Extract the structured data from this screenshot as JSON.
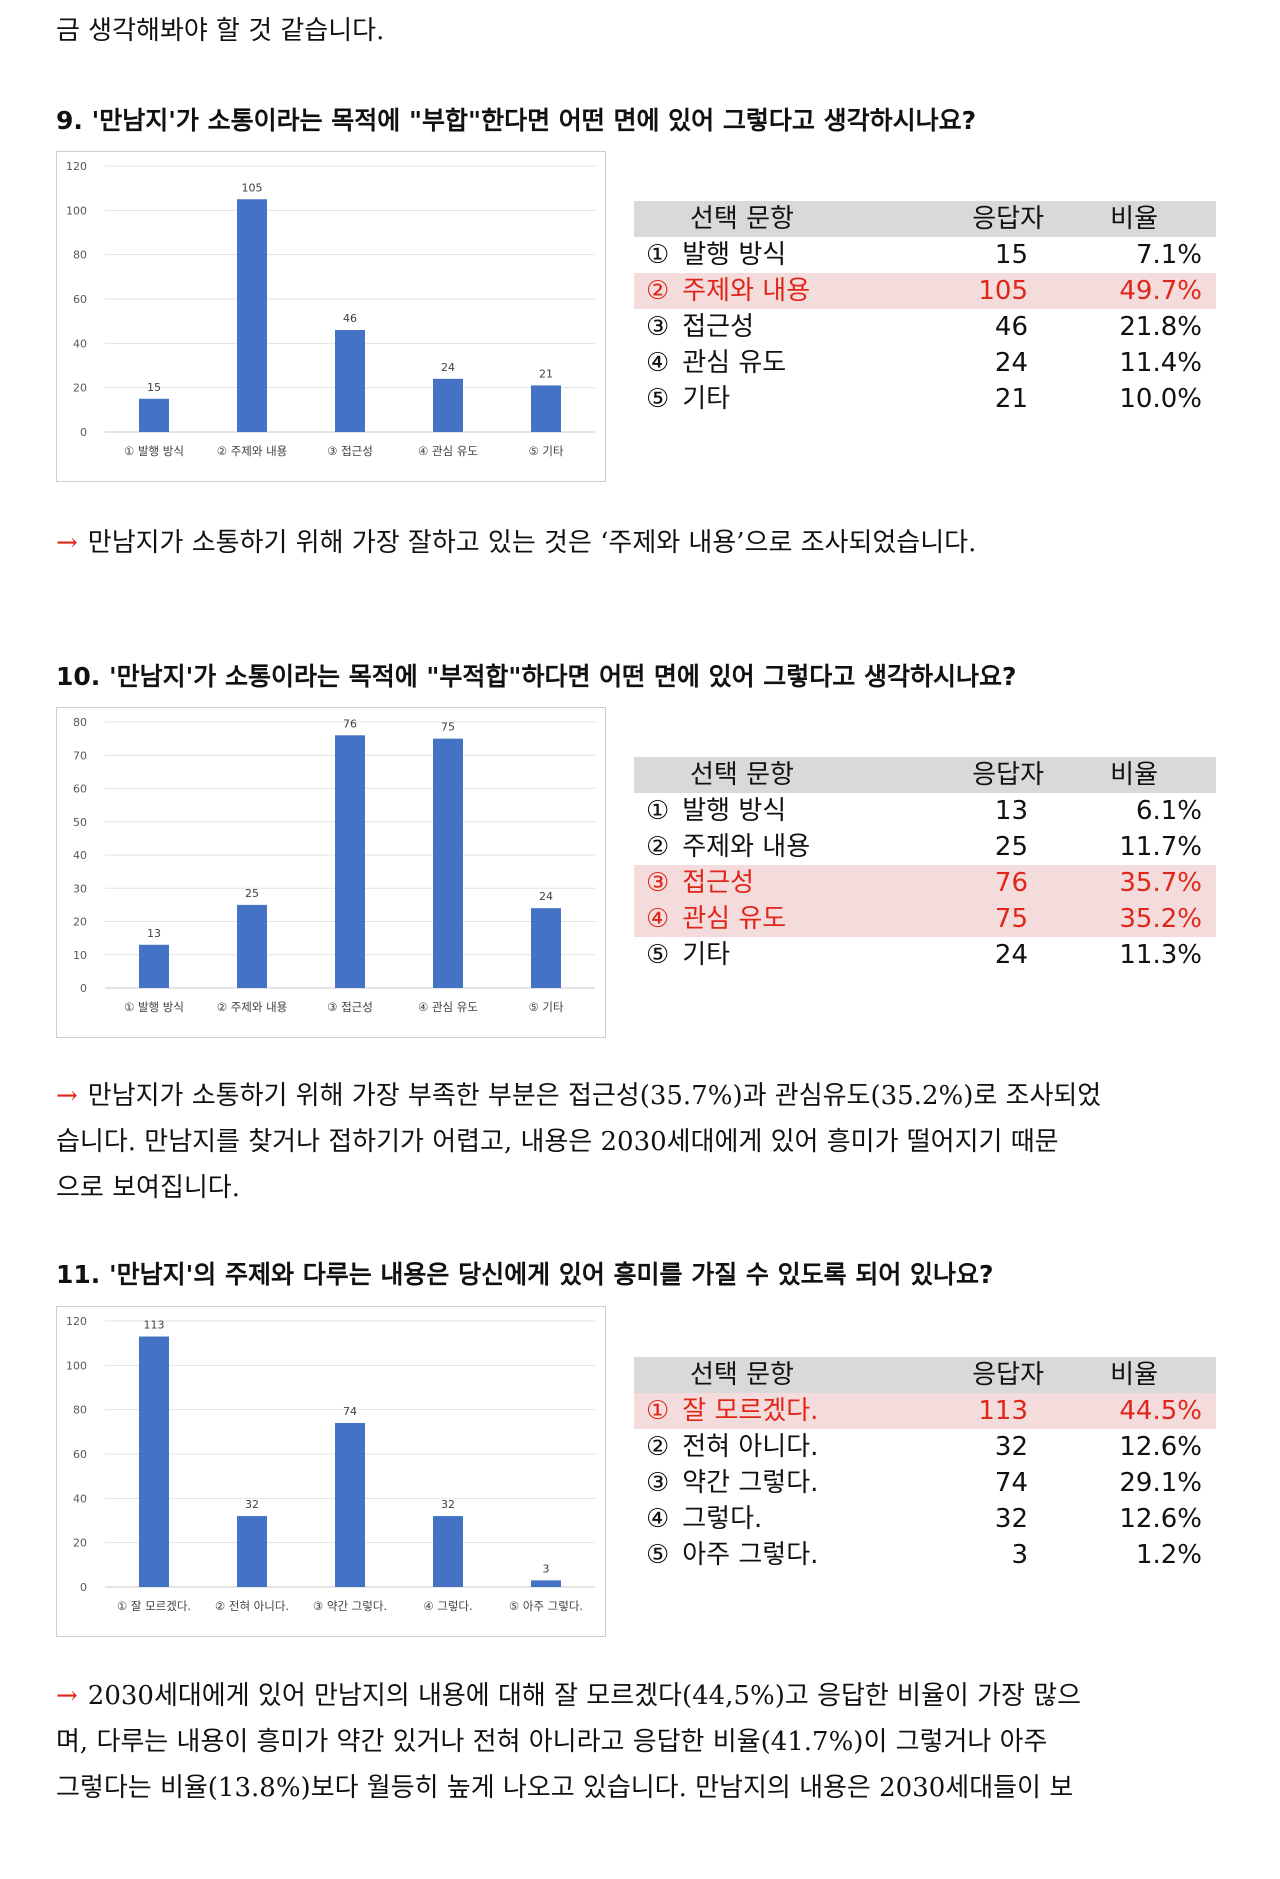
{
  "intro_text": "금 생각해봐야 할 것 같습니다.",
  "sections": [
    {
      "title": "9. '만남지'가 소통이라는 목적에 \"부합\"한다면 어떤 면에 있어 그렇다고 생각하시나요?",
      "table": {
        "headers": [
          "선택 문항",
          "응답자",
          "비율"
        ],
        "rows": [
          {
            "num": "①",
            "label": "발행 방식",
            "count": "15",
            "pct": "7.1%",
            "highlight": false
          },
          {
            "num": "②",
            "label": "주제와 내용",
            "count": "105",
            "pct": "49.7%",
            "highlight": true
          },
          {
            "num": "③",
            "label": "접근성",
            "count": "46",
            "pct": "21.8%",
            "highlight": false
          },
          {
            "num": "④",
            "label": "관심 유도",
            "count": "24",
            "pct": "11.4%",
            "highlight": false
          },
          {
            "num": "⑤",
            "label": "기타",
            "count": "21",
            "pct": "10.0%",
            "highlight": false
          }
        ]
      },
      "conclusion": {
        "arrow": "→",
        "lines": [
          "만남지가 소통하기 위해 가장 잘하고 있는 것은 ‘주제와 내용’으로 조사되었습니다."
        ]
      }
    },
    {
      "title": "10. '만남지'가 소통이라는 목적에 \"부적합\"하다면 어떤 면에 있어 그렇다고 생각하시나요?",
      "table": {
        "headers": [
          "선택 문항",
          "응답자",
          "비율"
        ],
        "rows": [
          {
            "num": "①",
            "label": "발행 방식",
            "count": "13",
            "pct": "6.1%",
            "highlight": false
          },
          {
            "num": "②",
            "label": "주제와 내용",
            "count": "25",
            "pct": "11.7%",
            "highlight": false
          },
          {
            "num": "③",
            "label": "접근성",
            "count": "76",
            "pct": "35.7%",
            "highlight": true
          },
          {
            "num": "④",
            "label": "관심 유도",
            "count": "75",
            "pct": "35.2%",
            "highlight": true
          },
          {
            "num": "⑤",
            "label": "기타",
            "count": "24",
            "pct": "11.3%",
            "highlight": false
          }
        ]
      },
      "conclusion": {
        "arrow": "→",
        "lines": [
          "만남지가 소통하기 위해 가장 부족한 부분은 접근성(35.7%)과 관심유도(35.2%)로 조사되었",
          "습니다. 만남지를 찾거나 접하기가 어렵고, 내용은 2030세대에게 있어 흥미가 떨어지기 때문",
          "으로 보여집니다."
        ]
      }
    },
    {
      "title": "11. '만남지'의 주제와 다루는 내용은 당신에게 있어 흥미를 가질 수 있도록 되어 있나요?",
      "table": {
        "headers": [
          "선택 문항",
          "응답자",
          "비율"
        ],
        "rows": [
          {
            "num": "①",
            "label": "잘 모르겠다.",
            "count": "113",
            "pct": "44.5%",
            "highlight": true
          },
          {
            "num": "②",
            "label": "전혀 아니다.",
            "count": "32",
            "pct": "12.6%",
            "highlight": false
          },
          {
            "num": "③",
            "label": "약간 그렇다.",
            "count": "74",
            "pct": "29.1%",
            "highlight": false
          },
          {
            "num": "④",
            "label": "그렇다.",
            "count": "32",
            "pct": "12.6%",
            "highlight": false
          },
          {
            "num": "⑤",
            "label": "아주 그렇다.",
            "count": "3",
            "pct": "1.2%",
            "highlight": false
          }
        ]
      },
      "conclusion": {
        "arrow": "→",
        "lines": [
          "2030세대에게 있어 만남지의 내용에 대해 잘 모르겠다(44,5%)고 응답한 비율이 가장 많으",
          "며, 다루는 내용이 흥미가 약간 있거나 전혀 아니라고 응답한 비율(41.7%)이 그렇거나 아주",
          "그렇다는 비율(13.8%)보다 월등히 높게 나오고 있습니다. 만남지의 내용은 2030세대들이 보"
        ]
      }
    }
  ],
  "colors": {
    "bar": "#4472c4",
    "highlight_text": "#e0261a",
    "highlight_bg": "#f5dcdc",
    "header_bg": "#d9d9d9",
    "arrow": "#e0261a"
  },
  "chart_data": [
    {
      "type": "bar",
      "categories": [
        "① 발행 방식",
        "② 주제와 내용",
        "③ 접근성",
        "④ 관심 유도",
        "⑤ 기타"
      ],
      "values": [
        15,
        105,
        46,
        24,
        21
      ],
      "yticks": [
        0,
        20,
        40,
        60,
        80,
        100,
        120
      ],
      "ylim": [
        0,
        120
      ],
      "grid": true
    },
    {
      "type": "bar",
      "categories": [
        "① 발행 방식",
        "② 주제와 내용",
        "③ 접근성",
        "④ 관심 유도",
        "⑤ 기타"
      ],
      "values": [
        13,
        25,
        76,
        75,
        24
      ],
      "yticks": [
        0,
        10,
        20,
        30,
        40,
        50,
        60,
        70,
        80
      ],
      "ylim": [
        0,
        80
      ],
      "grid": true
    },
    {
      "type": "bar",
      "categories": [
        "① 잘 모르겠다.",
        "② 전혀 아니다.",
        "③ 약간 그렇다.",
        "④ 그렇다.",
        "⑤ 아주 그렇다."
      ],
      "values": [
        113,
        32,
        74,
        32,
        3
      ],
      "yticks": [
        0,
        20,
        40,
        60,
        80,
        100,
        120
      ],
      "ylim": [
        0,
        120
      ],
      "grid": true
    }
  ]
}
